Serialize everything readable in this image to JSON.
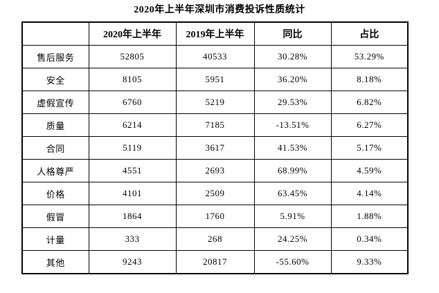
{
  "title": "2020年上半年深圳市消费投诉性质统计",
  "chart_data": {
    "type": "table",
    "title": "2020年上半年深圳市消费投诉性质统计",
    "columns": [
      "",
      "2020年上半年",
      "2019年上半年",
      "同比",
      "占比"
    ],
    "rows": [
      [
        "售后服务",
        52805,
        40533,
        "30.28%",
        "53.29%"
      ],
      [
        "安全",
        8105,
        5951,
        "36.20%",
        "8.18%"
      ],
      [
        "虚假宣传",
        6760,
        5219,
        "29.53%",
        "6.82%"
      ],
      [
        "质量",
        6214,
        7185,
        "-13.51%",
        "6.27%"
      ],
      [
        "合同",
        5119,
        3617,
        "41.53%",
        "5.17%"
      ],
      [
        "人格尊严",
        4551,
        2693,
        "68.99%",
        "4.59%"
      ],
      [
        "价格",
        4101,
        2509,
        "63.45%",
        "4.14%"
      ],
      [
        "假冒",
        1864,
        1760,
        "5.91%",
        "1.88%"
      ],
      [
        "计量",
        333,
        268,
        "24.25%",
        "0.34%"
      ],
      [
        "其他",
        9243,
        20817,
        "-55.60%",
        "9.33%"
      ]
    ],
    "layout": {
      "grid": "all-borders",
      "text_color": "#000000",
      "border_color": "#000000",
      "background": "#ffffff"
    }
  }
}
